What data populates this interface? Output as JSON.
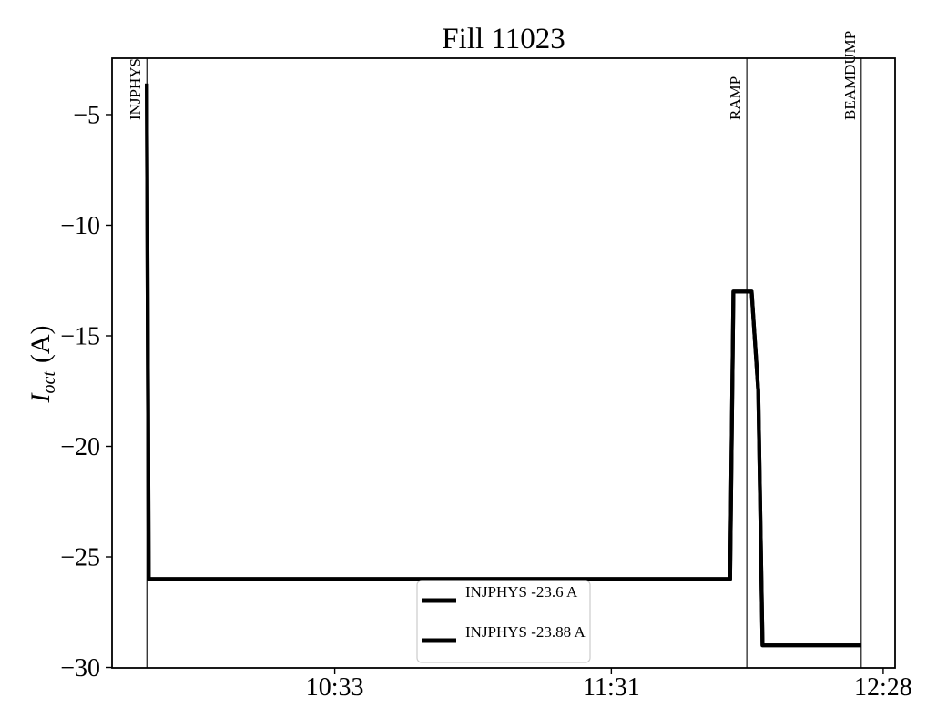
{
  "chart": {
    "title": "Fill 11023",
    "ylabel": {
      "var": "I",
      "sub": "oct",
      "unit": "(A)"
    }
  },
  "chart_data": {
    "type": "line",
    "title": "Fill 11023",
    "xlabel": "",
    "ylabel": "I_oct (A)",
    "grid": false,
    "background": "#ffffff",
    "x_axis": {
      "unit": "time (HH:MM)",
      "range_minutes": [
        586.3,
        750.5
      ],
      "ticks": [
        {
          "label": "10:33",
          "minutes": 633
        },
        {
          "label": "11:31",
          "minutes": 691
        },
        {
          "label": "12:28",
          "minutes": 748
        }
      ]
    },
    "y_axis": {
      "range": [
        -30.02,
        -2.45
      ],
      "ticks": [
        {
          "label": "−5",
          "value": -5
        },
        {
          "label": "−10",
          "value": -10
        },
        {
          "label": "−15",
          "value": -15
        },
        {
          "label": "−20",
          "value": -20
        },
        {
          "label": "−25",
          "value": -25
        },
        {
          "label": "−30",
          "value": -30
        }
      ]
    },
    "events": [
      {
        "label": "INJPHYS",
        "time": "09:54",
        "minutes": 593.6
      },
      {
        "label": "RAMP",
        "time": "11:59",
        "minutes": 719.4
      },
      {
        "label": "BEAMDUMP",
        "time": "12:23",
        "minutes": 743.4
      }
    ],
    "series": [
      {
        "name": "INJPHYS -23.6 A",
        "color": "#000000",
        "points": [
          {
            "t": "09:54",
            "minutes": 593.6,
            "A": -3.6
          },
          {
            "t": "09:54",
            "minutes": 594.0,
            "A": -26.0
          },
          {
            "t": "11:56",
            "minutes": 715.9,
            "A": -26.0
          },
          {
            "t": "11:57",
            "minutes": 716.6,
            "A": -13.0
          },
          {
            "t": "12:00",
            "minutes": 720.4,
            "A": -13.0
          },
          {
            "t": "12:01",
            "minutes": 721.8,
            "A": -17.5
          },
          {
            "t": "12:02",
            "minutes": 722.7,
            "A": -29.0
          },
          {
            "t": "12:23",
            "minutes": 743.4,
            "A": -29.0
          }
        ]
      },
      {
        "name": "INJPHYS -23.88 A",
        "color": "#000000",
        "points": [
          {
            "t": "09:54",
            "minutes": 593.6,
            "A": -3.6
          },
          {
            "t": "09:54",
            "minutes": 594.0,
            "A": -26.0
          },
          {
            "t": "11:56",
            "minutes": 715.9,
            "A": -26.0
          },
          {
            "t": "11:57",
            "minutes": 716.6,
            "A": -13.0
          },
          {
            "t": "12:00",
            "minutes": 720.4,
            "A": -13.0
          },
          {
            "t": "12:01",
            "minutes": 721.8,
            "A": -17.5
          },
          {
            "t": "12:02",
            "minutes": 722.7,
            "A": -29.0
          },
          {
            "t": "12:23",
            "minutes": 743.4,
            "A": -29.0
          }
        ]
      }
    ],
    "legend": {
      "position": "lower center",
      "border_color": "#cccccc",
      "entries": [
        "INJPHYS -23.6 A",
        "INJPHYS -23.88 A"
      ]
    }
  }
}
